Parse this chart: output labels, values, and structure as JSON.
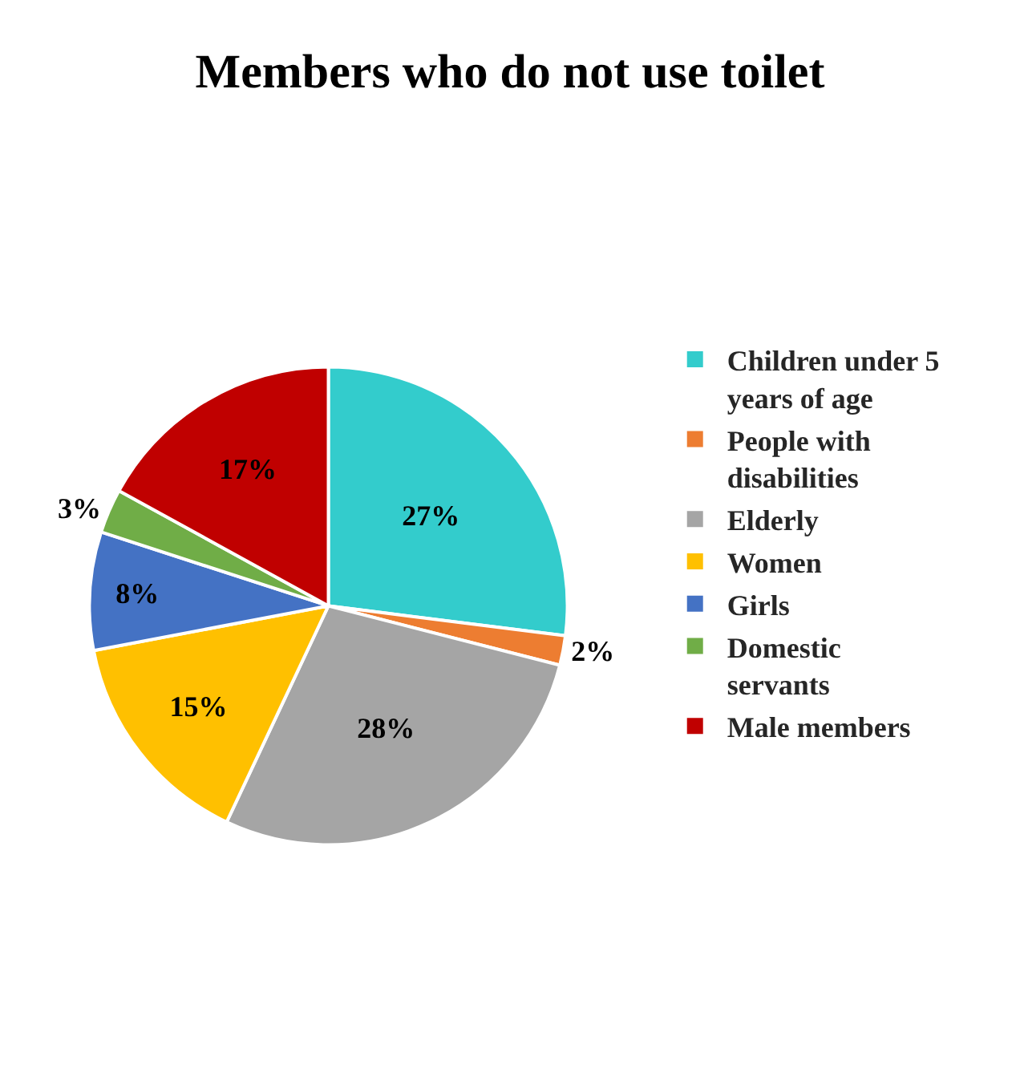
{
  "chart_data": {
    "type": "pie",
    "title": "Members who do not use toilet",
    "categories": [
      "Children under 5 years of age",
      "People with disabilities",
      "Elderly",
      "Women",
      "Girls",
      "Domestic servants",
      "Male members"
    ],
    "values": [
      27,
      2,
      28,
      15,
      8,
      3,
      17
    ],
    "colors": [
      "#33cccc",
      "#ed7d31",
      "#a5a5a5",
      "#ffc000",
      "#4472c4",
      "#70ad47",
      "#c00000"
    ],
    "value_labels": [
      "27%",
      "2%",
      "28%",
      "15%",
      "8%",
      "3%",
      "17%"
    ],
    "legend": "right"
  }
}
